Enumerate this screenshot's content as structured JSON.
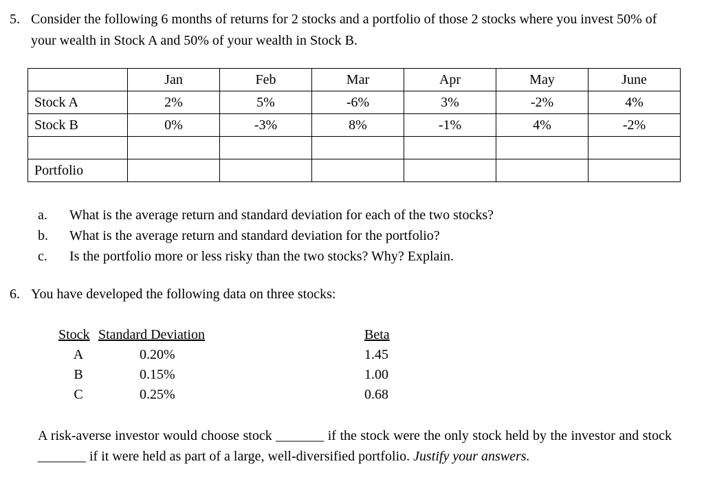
{
  "problem5": {
    "number": "5.",
    "intro": "Consider the following 6 months of returns for 2 stocks and a portfolio of those 2 stocks where you invest 50% of your wealth in Stock A and 50% of your wealth in Stock B.",
    "table": {
      "headers": [
        "",
        "Jan",
        "Feb",
        "Mar",
        "Apr",
        "May",
        "June"
      ],
      "rows": [
        {
          "label": "Stock A",
          "values": [
            "2%",
            "5%",
            "-6%",
            "3%",
            "-2%",
            "4%"
          ]
        },
        {
          "label": "Stock B",
          "values": [
            "0%",
            "-3%",
            "8%",
            "-1%",
            "4%",
            "-2%"
          ]
        },
        {
          "label": "",
          "values": [
            "",
            "",
            "",
            "",
            "",
            ""
          ]
        },
        {
          "label": "Portfolio",
          "values": [
            "",
            "",
            "",
            "",
            "",
            ""
          ]
        }
      ]
    },
    "questions": [
      {
        "letter": "a.",
        "text": "What is the average return and standard deviation for each of the two stocks?"
      },
      {
        "letter": "b.",
        "text": "What is the average return and standard deviation for the portfolio?"
      },
      {
        "letter": "c.",
        "text": "Is the portfolio more or less risky than the two stocks? Why? Explain."
      }
    ]
  },
  "problem6": {
    "number": "6.",
    "intro": "You have developed the following data on three stocks:",
    "table": {
      "headers": [
        "Stock",
        "Standard Deviation",
        "Beta"
      ],
      "rows": [
        {
          "stock": "A",
          "std_dev": "0.20%",
          "beta": "1.45"
        },
        {
          "stock": "B",
          "std_dev": "0.15%",
          "beta": "1.00"
        },
        {
          "stock": "C",
          "std_dev": "0.25%",
          "beta": "0.68"
        }
      ]
    },
    "closing": {
      "text": "A risk-averse investor would choose stock _______ if the stock were the only stock held by the investor and stock _______ if it were held as part of a large, well-diversified portfolio.",
      "italic_note": " Justify your answers."
    }
  }
}
